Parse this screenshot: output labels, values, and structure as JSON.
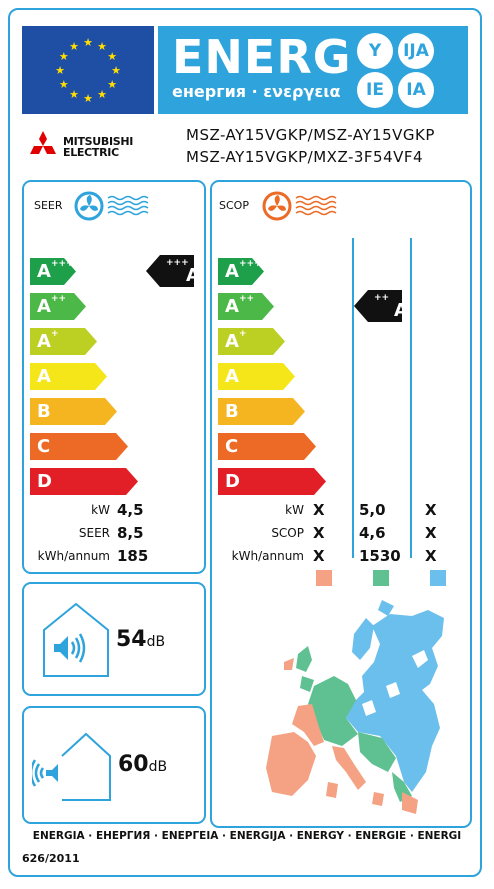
{
  "header": {
    "title": "ENERG",
    "subtitle": "енергия · ενεργεια",
    "circles": [
      "Y",
      "IJA",
      "IE",
      "IA"
    ]
  },
  "brand": {
    "line1": "MITSUBISHI",
    "line2": "ELECTRIC"
  },
  "models": {
    "line1": "MSZ-AY15VGKP/MSZ-AY15VGKP",
    "line2": "MSZ-AY15VGKP/MXZ-3F54VF4"
  },
  "seer_panel": {
    "title": "SEER",
    "rating": {
      "letter": "A",
      "sup": "+++"
    },
    "rows": [
      {
        "label": "kW",
        "value": "4,5"
      },
      {
        "label": "SEER",
        "value": "8,5"
      },
      {
        "label": "kWh/annum",
        "value": "185"
      }
    ]
  },
  "scop_panel": {
    "title": "SCOP",
    "rating": {
      "letter": "A",
      "sup": "++"
    },
    "rows": [
      {
        "label": "kW",
        "v1": "X",
        "v2": "5,0",
        "v3": "X"
      },
      {
        "label": "SCOP",
        "v1": "X",
        "v2": "4,6",
        "v3": "X"
      },
      {
        "label": "kWh/annum",
        "v1": "X",
        "v2": "1530",
        "v3": "X"
      }
    ],
    "climate_colors": [
      "#f4a283",
      "#5fc192",
      "#6bbfec"
    ]
  },
  "classes": [
    {
      "letter": "A",
      "sup": "+++",
      "color": "#1ea04a"
    },
    {
      "letter": "A",
      "sup": "++",
      "color": "#4cb848"
    },
    {
      "letter": "A",
      "sup": "+",
      "color": "#bccf23"
    },
    {
      "letter": "A",
      "sup": "",
      "color": "#f4e619"
    },
    {
      "letter": "B",
      "sup": "",
      "color": "#f5b520"
    },
    {
      "letter": "C",
      "sup": "",
      "color": "#ec6a25"
    },
    {
      "letter": "D",
      "sup": "",
      "color": "#e21f26"
    }
  ],
  "noise": {
    "indoor": {
      "value": "54",
      "unit": "dB"
    },
    "outdoor": {
      "value": "60",
      "unit": "dB"
    }
  },
  "footer": {
    "energy_line": "ENERGIA · ЕНЕРГИЯ · ΕΝΕΡΓΕΙΑ · ENERGIJA · ENERGY · ENERGIE · ENERGI",
    "regulation": "626/2011"
  },
  "colors": {
    "accent": "#2ea3dc",
    "eu_blue": "#1e4fa5",
    "star": "#ffde00"
  }
}
